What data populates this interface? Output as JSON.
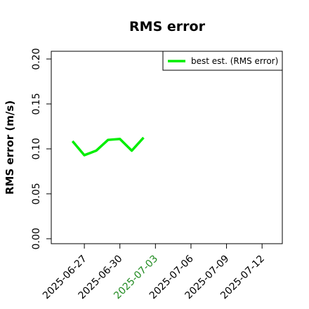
{
  "chart_data": {
    "type": "line",
    "title": "RMS error",
    "ylabel": "RMS error (m/s)",
    "x": [
      "2025-06-26",
      "2025-06-27",
      "2025-06-28",
      "2025-06-29",
      "2025-06-30",
      "2025-07-01",
      "2025-07-02"
    ],
    "series": [
      {
        "name": "best est. (RMS error)",
        "color": "#00ee00",
        "values": [
          0.1086,
          0.093,
          0.098,
          0.11,
          0.111,
          0.098,
          0.1125
        ]
      }
    ],
    "xlim": [
      "2025-06-24T05:00Z",
      "2025-07-13T17:00Z"
    ],
    "xticks": [
      "2025-06-27",
      "2025-06-30",
      "2025-07-03",
      "2025-07-06",
      "2025-07-09",
      "2025-07-12"
    ],
    "xtick_colors": [
      "#000000",
      "#000000",
      "#228b22",
      "#000000",
      "#000000",
      "#000000"
    ],
    "ylim": [
      -0.0055,
      0.2086
    ],
    "yticks": [
      {
        "value": 0,
        "label": "0.00"
      },
      {
        "value": 0.05,
        "label": "0.05"
      },
      {
        "value": 0.1,
        "label": "0.10"
      },
      {
        "value": 0.15,
        "label": "0.15"
      },
      {
        "value": 0.2,
        "label": "0.20"
      }
    ],
    "legend": "top-right"
  }
}
